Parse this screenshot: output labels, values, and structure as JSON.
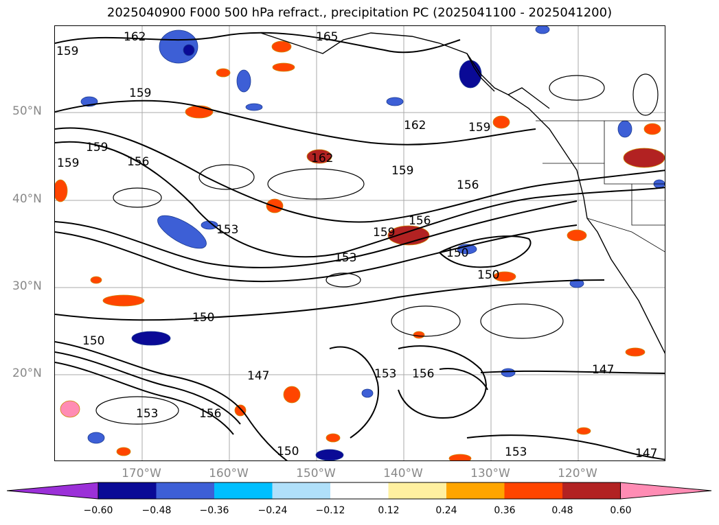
{
  "title": "2025040900 F000 500 hPa refract., precipitation PC (2025041100 - 2025041200)",
  "lat_labels": [
    "50°N",
    "40°N",
    "30°N",
    "20°N"
  ],
  "lon_labels": [
    "170°W",
    "160°W",
    "150°W",
    "140°W",
    "130°W",
    "120°W"
  ],
  "colorbar": {
    "ticks": [
      "−0.60",
      "−0.48",
      "−0.36",
      "−0.24",
      "−0.12",
      "0.12",
      "0.24",
      "0.36",
      "0.48",
      "0.60"
    ],
    "colors": [
      "#9b30d8",
      "#0a0a96",
      "#3d5fd6",
      "#00bfff",
      "#b0e0fa",
      "#ffffff",
      "#fff0a0",
      "#ffa500",
      "#ff4500",
      "#b22222",
      "#ff8cb4"
    ]
  },
  "contour_labels": [
    "162",
    "165",
    "159",
    "159",
    "159",
    "162",
    "159",
    "156",
    "159",
    "162",
    "159",
    "156",
    "153",
    "153",
    "159",
    "156",
    "150",
    "150",
    "150",
    "150",
    "147",
    "156",
    "153",
    "147",
    "153",
    "156",
    "150",
    "153",
    "147"
  ]
}
